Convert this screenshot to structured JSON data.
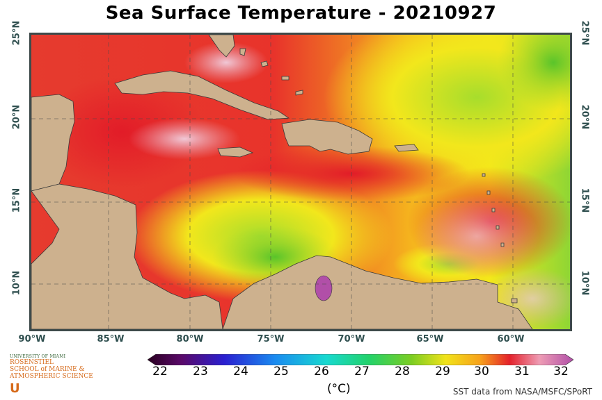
{
  "title": "Sea Surface Temperature - 20210927",
  "longitude_labels": [
    "90°W",
    "85°W",
    "80°W",
    "75°W",
    "70°W",
    "65°W",
    "60°W"
  ],
  "latitude_labels": [
    "25°N",
    "20°N",
    "15°N",
    "10°N"
  ],
  "colorbar": {
    "values": [
      "22",
      "23",
      "24",
      "25",
      "26",
      "27",
      "28",
      "29",
      "30",
      "31",
      "32"
    ],
    "unit": "(°C)"
  },
  "credit": "SST data from NASA/MSFC/SPoRT",
  "logo": {
    "line1": "UNIVERSITY OF MIAMI",
    "line2": "ROSENSTIEL",
    "line3": "SCHOOL of MARINE &",
    "line4": "ATMOSPHERIC SCIENCE"
  },
  "colors": {
    "land": "#cdb18e",
    "hot": "#e4212b",
    "warm": "#f7a21b",
    "mild": "#f4e81a",
    "cool": "#6fcd2a",
    "very_hot": "#e8a5b5"
  }
}
